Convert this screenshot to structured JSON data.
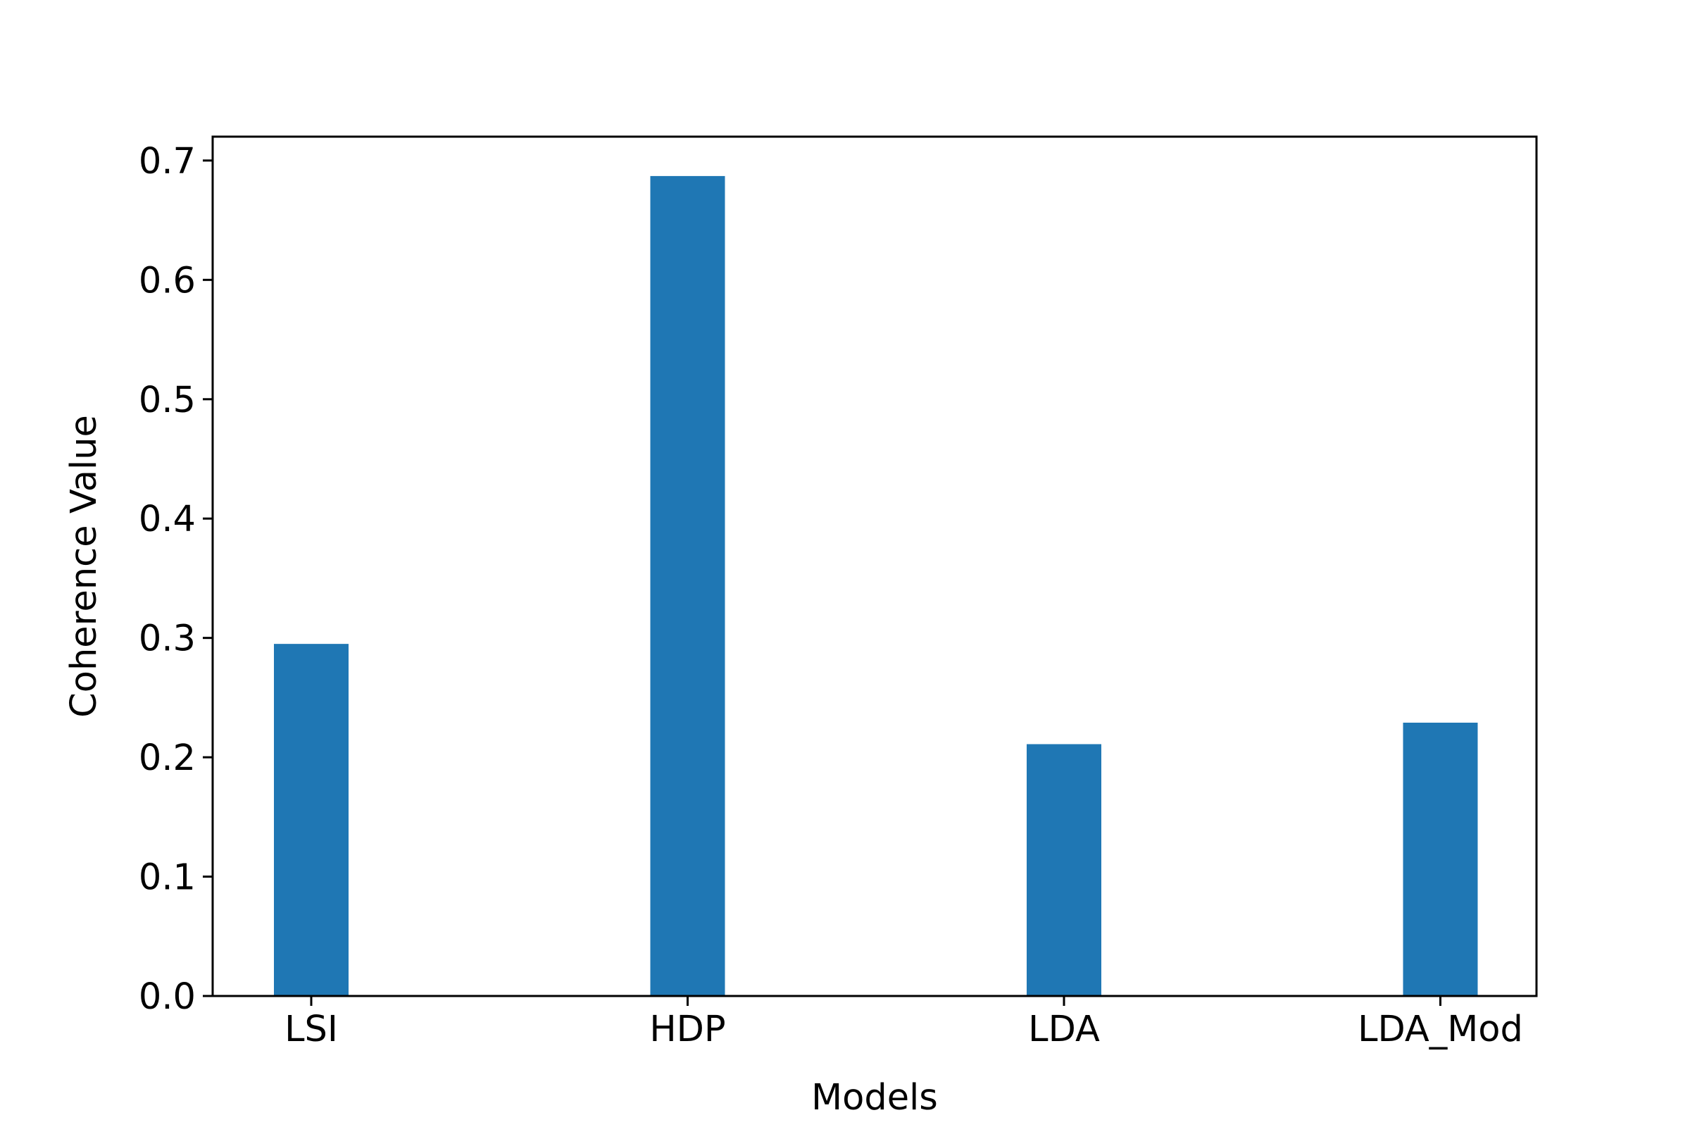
{
  "chart_data": {
    "type": "bar",
    "categories": [
      "LSI",
      "HDP",
      "LDA",
      "LDA_Mod"
    ],
    "values": [
      0.295,
      0.687,
      0.211,
      0.229
    ],
    "xlabel": "Models",
    "ylabel": "Coherence Value",
    "ylim": [
      0,
      0.72
    ],
    "yticks": [
      "0.0",
      "0.1",
      "0.2",
      "0.3",
      "0.4",
      "0.5",
      "0.6",
      "0.7"
    ],
    "grid": false,
    "bar_color": "#1f77b4"
  }
}
